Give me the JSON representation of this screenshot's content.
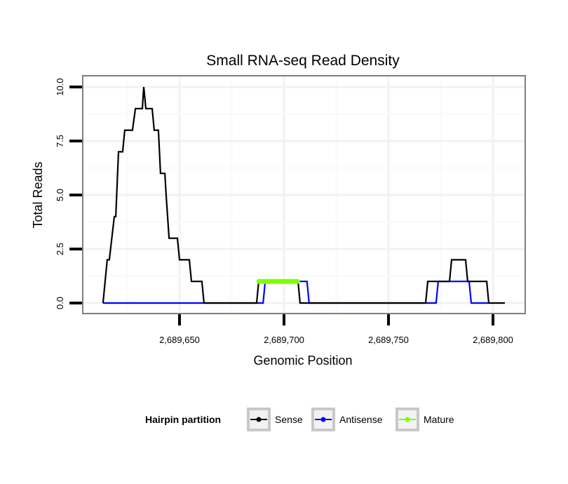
{
  "chart_data": {
    "type": "line",
    "title": "Small RNA-seq Read Density",
    "xlabel": "Genomic Position",
    "ylabel": "Total Reads",
    "xlim": [
      2689600,
      2689816
    ],
    "ylim": [
      -0.3,
      10.8
    ],
    "x_ticks": [
      2689650,
      2689700,
      2689750,
      2689800
    ],
    "x_tick_labels": [
      "2,689,650",
      "2,689,700",
      "2,689,750",
      "2,689,800"
    ],
    "y_ticks": [
      0,
      2.5,
      5,
      7.5,
      10
    ],
    "y_tick_labels": [
      "0.0",
      "2.5",
      "5.0",
      "7.5",
      "10.0"
    ],
    "grid": true,
    "legend": {
      "title": "Hairpin partition",
      "placement": "bottom"
    },
    "series": [
      {
        "name": "Sense",
        "color": "#000000",
        "points": [
          [
            2689613.4,
            0
          ],
          [
            2689615.4,
            2
          ],
          [
            2689616.4,
            2
          ],
          [
            2689618.8,
            4
          ],
          [
            2689619.5,
            4
          ],
          [
            2689620.8,
            7
          ],
          [
            2689622.8,
            7
          ],
          [
            2689623.8,
            8
          ],
          [
            2689627.5,
            8
          ],
          [
            2689628.9,
            9
          ],
          [
            2689632.2,
            9
          ],
          [
            2689632.9,
            10
          ],
          [
            2689633.9,
            9
          ],
          [
            2689636.9,
            9
          ],
          [
            2689637.9,
            8
          ],
          [
            2689639.9,
            8
          ],
          [
            2689640.9,
            6
          ],
          [
            2689643.0,
            6
          ],
          [
            2689643.6,
            5
          ],
          [
            2689645.0,
            3
          ],
          [
            2689649.0,
            3
          ],
          [
            2689650.0,
            2
          ],
          [
            2689654.7,
            2
          ],
          [
            2689655.7,
            1
          ],
          [
            2689660.7,
            1
          ],
          [
            2689661.7,
            0
          ],
          [
            2689686.9,
            0
          ],
          [
            2689687.9,
            1
          ],
          [
            2689706.7,
            1
          ],
          [
            2689707.7,
            0
          ],
          [
            2689767.8,
            0
          ],
          [
            2689768.8,
            1
          ],
          [
            2689779.2,
            1
          ],
          [
            2689780.2,
            2
          ],
          [
            2689786.9,
            2
          ],
          [
            2689787.9,
            1
          ],
          [
            2689797.0,
            1
          ],
          [
            2689798.0,
            0
          ],
          [
            2689805.7,
            0
          ]
        ]
      },
      {
        "name": "Antisense",
        "color": "#0000ff",
        "points": [
          [
            2689613.4,
            0
          ],
          [
            2689690,
            0
          ],
          [
            2689691,
            1
          ],
          [
            2689711,
            1
          ],
          [
            2689712,
            0
          ],
          [
            2689772.8,
            0
          ],
          [
            2689773.8,
            1
          ],
          [
            2689788.6,
            1
          ],
          [
            2689789.6,
            0
          ],
          [
            2689798,
            0
          ]
        ]
      },
      {
        "name": "Mature",
        "color": "#80ff00",
        "points": [
          [
            2689688,
            1
          ],
          [
            2689706.5,
            1
          ]
        ]
      }
    ]
  }
}
